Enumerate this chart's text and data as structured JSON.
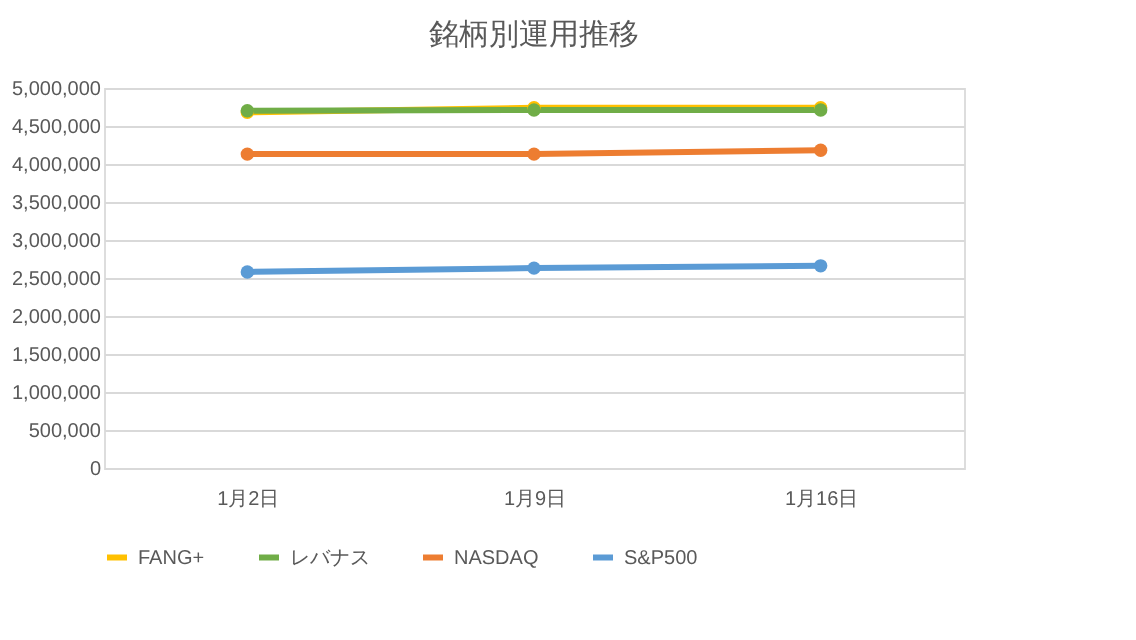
{
  "chart_data": {
    "type": "line",
    "title": "銘柄別運用推移",
    "categories": [
      "1月2日",
      "1月9日",
      "1月16日"
    ],
    "series": [
      {
        "name": "FANG+",
        "color": "#ffc000",
        "values": [
          4680000,
          4740000,
          4740000
        ]
      },
      {
        "name": "レバナス",
        "color": "#70ad47",
        "values": [
          4700000,
          4710000,
          4710000
        ]
      },
      {
        "name": "NASDAQ",
        "color": "#ed7d31",
        "values": [
          4130000,
          4130000,
          4180000
        ]
      },
      {
        "name": "S&P500",
        "color": "#5b9bd5",
        "values": [
          2580000,
          2630000,
          2660000
        ]
      }
    ],
    "ylim": [
      0,
      5000000
    ],
    "yticks": [
      {
        "value": 0,
        "label": "0"
      },
      {
        "value": 500000,
        "label": "500,000"
      },
      {
        "value": 1000000,
        "label": "1,000,000"
      },
      {
        "value": 1500000,
        "label": "1,500,000"
      },
      {
        "value": 2000000,
        "label": "2,000,000"
      },
      {
        "value": 2500000,
        "label": "2,500,000"
      },
      {
        "value": 3000000,
        "label": "3,000,000"
      },
      {
        "value": 3500000,
        "label": "3,500,000"
      },
      {
        "value": 4000000,
        "label": "4,000,000"
      },
      {
        "value": 4500000,
        "label": "4,500,000"
      },
      {
        "value": 5000000,
        "label": "5,000,000"
      }
    ],
    "grid": "y",
    "legend": "bottom",
    "marker": "circle",
    "line_style": "solid"
  }
}
